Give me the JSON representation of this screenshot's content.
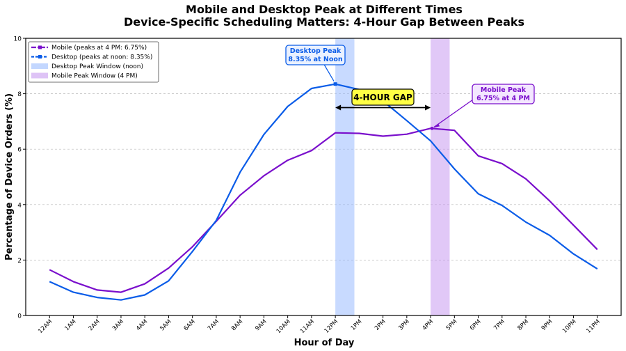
{
  "chart_data": {
    "type": "line",
    "title": "Mobile and Desktop Peak at Different Times",
    "subtitle": "Device-Specific Scheduling Matters: 4-Hour Gap Between Peaks",
    "xlabel": "Hour of Day",
    "ylabel": "Percentage of Device Orders (%)",
    "categories": [
      "12AM",
      "1AM",
      "2AM",
      "3AM",
      "4AM",
      "5AM",
      "6AM",
      "7AM",
      "8AM",
      "9AM",
      "10AM",
      "11AM",
      "12PM",
      "1PM",
      "2PM",
      "3PM",
      "4PM",
      "5PM",
      "6PM",
      "7PM",
      "8PM",
      "9PM",
      "10PM",
      "11PM"
    ],
    "ylim": [
      0,
      10
    ],
    "yticks": [
      "0",
      "2",
      "4",
      "6",
      "8",
      "10"
    ],
    "grid": "horizontal-dashed",
    "legend_position": "top-left",
    "series": [
      {
        "name": "Mobile (peaks at 4 PM: 6.75%)",
        "color": "#7a0fcc",
        "values": [
          1.65,
          1.22,
          0.92,
          0.84,
          1.14,
          1.71,
          2.48,
          3.4,
          4.34,
          5.04,
          5.6,
          5.95,
          6.59,
          6.57,
          6.47,
          6.54,
          6.75,
          6.68,
          5.76,
          5.48,
          4.93,
          4.13,
          3.26,
          2.38
        ]
      },
      {
        "name": "Desktop (peaks at noon: 8.35%)",
        "color": "#0a5ce8",
        "values": [
          1.22,
          0.84,
          0.65,
          0.56,
          0.74,
          1.25,
          2.31,
          3.43,
          5.17,
          6.53,
          7.54,
          8.19,
          8.35,
          8.15,
          7.74,
          7.03,
          6.3,
          5.29,
          4.39,
          3.97,
          3.37,
          2.89,
          2.22,
          1.68
        ]
      }
    ],
    "bands": [
      {
        "name": "Desktop Peak Window (noon)",
        "color": "#9bbcff",
        "x_start": 12.0,
        "x_end": 12.8
      },
      {
        "name": "Mobile Peak Window (4 PM)",
        "color": "#c89bf0",
        "x_start": 16.0,
        "x_end": 16.8
      }
    ],
    "annotations": {
      "desktop_peak": {
        "line1": "Desktop Peak",
        "line2": "8.35% at Noon",
        "x": 12,
        "y": 8.35,
        "color": "#0a5ce8"
      },
      "mobile_peak": {
        "line1": "Mobile Peak",
        "line2": "6.75% at 4 PM",
        "x": 16,
        "y": 6.75,
        "color": "#7a0fcc"
      },
      "gap": {
        "label": "4-HOUR GAP",
        "x_start": 12,
        "x_end": 16,
        "y": 7.5
      }
    }
  }
}
